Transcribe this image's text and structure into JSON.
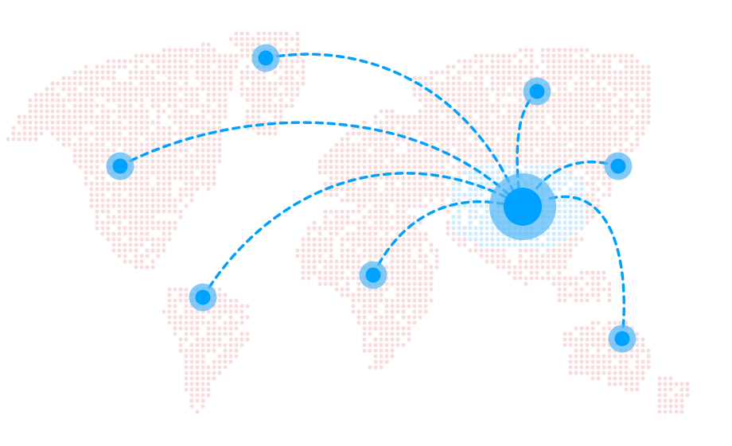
{
  "map": {
    "dot_color": "#f8dcdc",
    "highlight_color": "#cfe9fd",
    "line_color": "#00a0fb",
    "node_color": "#00a2ff",
    "halo_color": "#5ab9f6",
    "hub_region": "china"
  }
}
